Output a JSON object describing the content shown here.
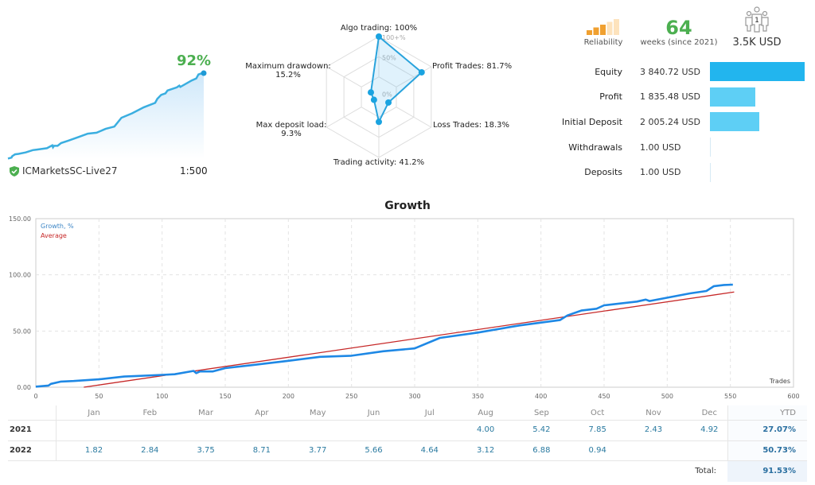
{
  "summary": {
    "growth_pct": "92%",
    "account": "ICMarketsSC-Live27",
    "leverage": "1:500",
    "verified_icon": "shield-check-icon"
  },
  "radar": {
    "scale_labels": [
      "100+%",
      "50%",
      "0%"
    ],
    "axes": [
      {
        "label": "Algo trading: 100%",
        "value": 100
      },
      {
        "label": "Profit Trades: 81.7%",
        "value": 81.7
      },
      {
        "label": "Loss Trades: 18.3%",
        "value": 18.3
      },
      {
        "label": "Trading activity: 41.2%",
        "value": 41.2
      },
      {
        "label_line1": "Max deposit load:",
        "label_line2": "9.3%",
        "value": 9.3
      },
      {
        "label_line1": "Maximum drawdown:",
        "label_line2": "15.2%",
        "value": 15.2
      }
    ]
  },
  "stats": {
    "reliability_label": "Reliability",
    "reliability_level": 3,
    "reliability_max": 5,
    "weeks": "64",
    "weeks_label": "weeks (since 2021)",
    "subscribers": "1",
    "subscribers_funds": "3.5K USD"
  },
  "financials": [
    {
      "label": "Equity",
      "value": "3 840.72 USD",
      "amount": 3840.72
    },
    {
      "label": "Profit",
      "value": "1 835.48 USD",
      "amount": 1835.48
    },
    {
      "label": "Initial Deposit",
      "value": "2 005.24 USD",
      "amount": 2005.24
    },
    {
      "label": "Withdrawals",
      "value": "1.00 USD",
      "amount": 1.0
    },
    {
      "label": "Deposits",
      "value": "1.00 USD",
      "amount": 1.0
    }
  ],
  "colors": {
    "growth": "#1e88e5",
    "average": "#c62828",
    "accent": "#22b5ee",
    "green": "#4caf50",
    "reliability": "#f0a030"
  },
  "chart_data": {
    "type": "line",
    "title": "Growth",
    "xlabel": "Trades",
    "xlim": [
      0,
      600
    ],
    "ylim": [
      0,
      150
    ],
    "xticks": [
      "0",
      "50",
      "100",
      "150",
      "200",
      "250",
      "300",
      "350",
      "400",
      "450",
      "500",
      "550",
      "600"
    ],
    "yticks": [
      "0.00",
      "50.00",
      "100.00",
      "150.00"
    ],
    "grid": true,
    "legend_position": "top-left",
    "series": [
      {
        "name": "Growth, %",
        "points": [
          [
            0,
            0.5
          ],
          [
            10,
            1.5
          ],
          [
            12,
            3
          ],
          [
            20,
            5
          ],
          [
            30,
            5.5
          ],
          [
            50,
            7
          ],
          [
            70,
            9.5
          ],
          [
            80,
            10
          ],
          [
            100,
            11
          ],
          [
            110,
            11.5
          ],
          [
            125,
            14.5
          ],
          [
            127,
            12.5
          ],
          [
            130,
            14
          ],
          [
            140,
            14
          ],
          [
            150,
            17
          ],
          [
            170,
            19.5
          ],
          [
            200,
            23.5
          ],
          [
            225,
            27
          ],
          [
            250,
            28
          ],
          [
            275,
            32
          ],
          [
            300,
            34.5
          ],
          [
            320,
            43.9
          ],
          [
            350,
            48.6
          ],
          [
            383,
            55
          ],
          [
            415,
            59.7
          ],
          [
            421,
            63.9
          ],
          [
            432,
            68.2
          ],
          [
            444,
            69.8
          ],
          [
            450,
            72.9
          ],
          [
            476,
            76.2
          ],
          [
            483,
            78
          ],
          [
            486,
            76.7
          ],
          [
            518,
            83.5
          ],
          [
            531,
            85.6
          ],
          [
            537,
            89.9
          ],
          [
            545,
            91
          ],
          [
            552,
            91.3
          ]
        ]
      },
      {
        "name": "Average",
        "points": [
          [
            38,
            0
          ],
          [
            553,
            84.7
          ]
        ]
      }
    ]
  },
  "monthly": {
    "headers": [
      "Jan",
      "Feb",
      "Mar",
      "Apr",
      "May",
      "Jun",
      "Jul",
      "Aug",
      "Sep",
      "Oct",
      "Nov",
      "Dec"
    ],
    "ytd_header": "YTD",
    "rows": [
      {
        "year": "2021",
        "values": [
          "",
          "",
          "",
          "",
          "",
          "",
          "",
          "4.00",
          "5.42",
          "7.85",
          "2.43",
          "4.92"
        ],
        "ytd": "27.07%"
      },
      {
        "year": "2022",
        "values": [
          "1.82",
          "2.84",
          "3.75",
          "8.71",
          "3.77",
          "5.66",
          "4.64",
          "3.12",
          "6.88",
          "0.94",
          "",
          ""
        ],
        "ytd": "50.73%"
      }
    ],
    "total_label": "Total:",
    "total": "91.53%"
  }
}
